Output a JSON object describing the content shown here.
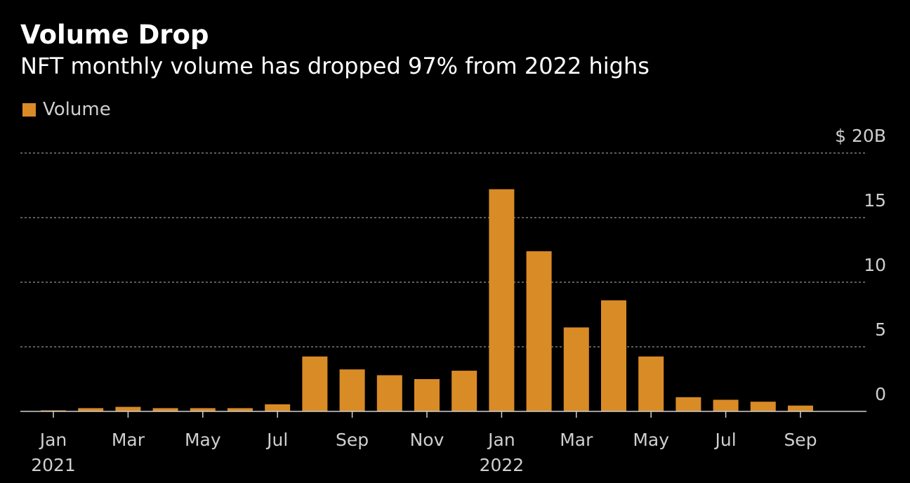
{
  "chart_data": {
    "type": "bar",
    "title": "Volume Drop",
    "subtitle": "NFT monthly volume has dropped 97% from 2022 highs",
    "legend": [
      {
        "name": "Volume",
        "color": "#d98b26"
      }
    ],
    "xlabel": "",
    "ylabel": "",
    "unit_label": "$ 20B",
    "ylim": [
      0,
      20
    ],
    "y_ticks": [
      0,
      5,
      10,
      15,
      20
    ],
    "y_tick_labels": [
      "0",
      "5",
      "10",
      "15",
      "$ 20B"
    ],
    "grid": true,
    "categories": [
      "2021-01",
      "2021-02",
      "2021-03",
      "2021-04",
      "2021-05",
      "2021-06",
      "2021-07",
      "2021-08",
      "2021-09",
      "2021-10",
      "2021-11",
      "2021-12",
      "2022-01",
      "2022-02",
      "2022-03",
      "2022-04",
      "2022-05",
      "2022-06",
      "2022-07",
      "2022-08",
      "2022-09"
    ],
    "series": [
      {
        "name": "Volume",
        "values": [
          0.05,
          0.25,
          0.35,
          0.25,
          0.25,
          0.25,
          0.55,
          4.25,
          3.25,
          2.8,
          2.5,
          3.15,
          17.2,
          12.4,
          6.5,
          8.6,
          4.25,
          1.1,
          0.9,
          0.75,
          0.45
        ]
      }
    ],
    "x_tick_labels": [
      {
        "index": 0,
        "month": "Jan",
        "year": "2021"
      },
      {
        "index": 2,
        "month": "Mar",
        "year": ""
      },
      {
        "index": 4,
        "month": "May",
        "year": ""
      },
      {
        "index": 6,
        "month": "Jul",
        "year": ""
      },
      {
        "index": 8,
        "month": "Sep",
        "year": ""
      },
      {
        "index": 10,
        "month": "Nov",
        "year": ""
      },
      {
        "index": 12,
        "month": "Jan",
        "year": "2022"
      },
      {
        "index": 14,
        "month": "Mar",
        "year": ""
      },
      {
        "index": 16,
        "month": "May",
        "year": ""
      },
      {
        "index": 18,
        "month": "Jul",
        "year": ""
      },
      {
        "index": 20,
        "month": "Sep",
        "year": ""
      }
    ],
    "colors": {
      "bar": "#d98b26",
      "grid": "#7a7a7a",
      "axis": "#d0d0d0",
      "tick_text": "#cfcfcf",
      "background": "#000000"
    }
  }
}
